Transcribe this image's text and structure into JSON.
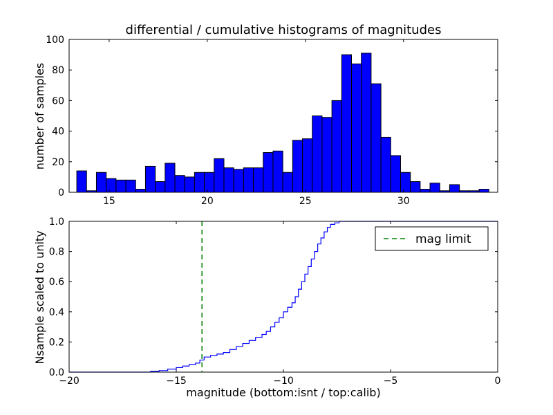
{
  "figure": {
    "background": "#ffffff"
  },
  "chart_data": [
    {
      "type": "bar",
      "subtype": "histogram",
      "title": "differential / cumulative histograms of magnitudes",
      "xlabel": "",
      "ylabel": "number of samples",
      "bar_color": "#0000ff",
      "bar_edge_color": "#000000",
      "bin_start": 13.35,
      "bin_width": 0.5,
      "counts": [
        14,
        1,
        13,
        9,
        8,
        8,
        2,
        17,
        7,
        19,
        11,
        10,
        13,
        13,
        22,
        16,
        15,
        16,
        16,
        26,
        27,
        13,
        34,
        35,
        50,
        49,
        60,
        90,
        84,
        91,
        71,
        36,
        24,
        13,
        7,
        2,
        6,
        1,
        5,
        1,
        1,
        2
      ],
      "xlim": [
        12.96,
        34.8
      ],
      "ylim": [
        0,
        100
      ],
      "xticks": [
        15,
        20,
        25,
        30
      ],
      "xtick_labels": [
        "15",
        "20",
        "25",
        "30"
      ],
      "yticks": [
        0,
        20,
        40,
        60,
        80,
        100
      ],
      "ytick_labels": [
        "0",
        "20",
        "40",
        "60",
        "80",
        "100"
      ],
      "grid": false,
      "legend": null
    },
    {
      "type": "line",
      "subtype": "cumulative-step",
      "title": "",
      "xlabel": "magnitude (bottom:isnt / top:calib)",
      "ylabel": "Nsample scaled to unity",
      "line_color": "#0000ff",
      "steps": {
        "x": [
          -20,
          -16.2,
          -15.8,
          -15.4,
          -15.0,
          -14.7,
          -14.4,
          -14.1,
          -13.9,
          -13.7,
          -13.4,
          -13.1,
          -12.8,
          -12.5,
          -12.2,
          -11.9,
          -11.6,
          -11.3,
          -11.0,
          -10.8,
          -10.6,
          -10.4,
          -10.2,
          -10.0,
          -9.8,
          -9.6,
          -9.45,
          -9.3,
          -9.15,
          -9.0,
          -8.85,
          -8.7,
          -8.55,
          -8.4,
          -8.25,
          -8.1,
          -7.95,
          -7.8,
          -7.6,
          -7.4,
          0
        ],
        "y": [
          0,
          0.005,
          0.01,
          0.02,
          0.03,
          0.04,
          0.05,
          0.06,
          0.08,
          0.1,
          0.11,
          0.12,
          0.13,
          0.15,
          0.17,
          0.19,
          0.21,
          0.23,
          0.25,
          0.27,
          0.3,
          0.33,
          0.36,
          0.4,
          0.43,
          0.46,
          0.5,
          0.55,
          0.6,
          0.65,
          0.7,
          0.75,
          0.8,
          0.85,
          0.89,
          0.93,
          0.96,
          0.98,
          0.99,
          1.0,
          1.0
        ]
      },
      "xlim": [
        -20,
        0
      ],
      "ylim": [
        0,
        1.0
      ],
      "xticks": [
        -20,
        -15,
        -10,
        -5,
        0
      ],
      "xtick_labels": [
        "−20",
        "−15",
        "−10",
        "−5",
        "0"
      ],
      "yticks": [
        0,
        0.2,
        0.4,
        0.6,
        0.8,
        1.0
      ],
      "ytick_labels": [
        "0.0",
        "0.2",
        "0.4",
        "0.6",
        "0.8",
        "1.0"
      ],
      "grid": false,
      "vline": {
        "x": -13.8,
        "color": "#008000",
        "style": "dashed",
        "label": "mag limit"
      },
      "legend": {
        "label": "mag limit",
        "position": "upper right"
      }
    }
  ]
}
